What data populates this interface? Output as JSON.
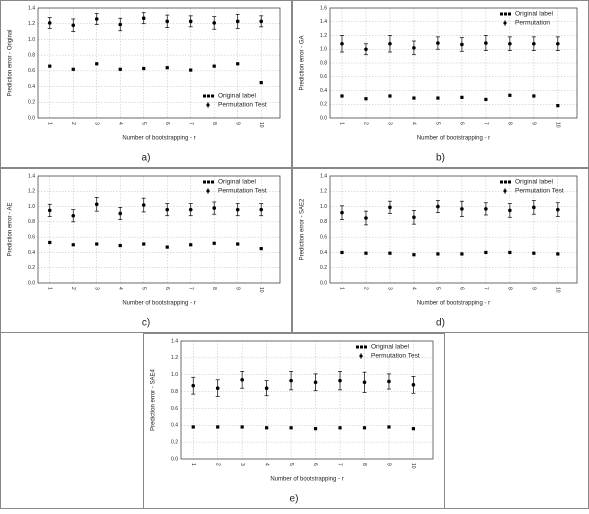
{
  "chart_data": [
    {
      "type": "errorbar",
      "panel_label": "a)",
      "ylabel": "Prediction error - Original",
      "xlabel": "Number of bootstrapping - r",
      "x": [
        1,
        2,
        3,
        4,
        5,
        6,
        7,
        8,
        9,
        10
      ],
      "xlim": [
        0.5,
        10.8
      ],
      "xticks": [
        1,
        2,
        3,
        4,
        5,
        6,
        7,
        8,
        9,
        10
      ],
      "ylim": [
        0,
        1.4
      ],
      "yticks": [
        {
          "value": 0,
          "label": "0.0"
        },
        0.2,
        0.4,
        0.6,
        0.8,
        {
          "value": 1,
          "label": "1.0"
        },
        1.2,
        1.4
      ],
      "grid": true,
      "legend_loc": "lower right",
      "series": [
        {
          "name": "Original label",
          "color": "#000000",
          "values": [
            0.66,
            0.62,
            0.69,
            0.62,
            0.63,
            0.64,
            0.61,
            0.66,
            0.69,
            0.45
          ]
        },
        {
          "name": "Permutation Test",
          "color": "#000000",
          "values": [
            1.21,
            1.18,
            1.26,
            1.19,
            1.27,
            1.23,
            1.23,
            1.21,
            1.23,
            1.23
          ],
          "errors": [
            0.07,
            0.08,
            0.07,
            0.08,
            0.07,
            0.08,
            0.07,
            0.08,
            0.09,
            0.07
          ]
        }
      ]
    },
    {
      "type": "errorbar",
      "panel_label": "b)",
      "ylabel": "Prediction error - GA",
      "xlabel": "Number of bootstrapping - r",
      "x": [
        1,
        2,
        3,
        4,
        5,
        6,
        7,
        8,
        9,
        10
      ],
      "xlim": [
        0.5,
        10.8
      ],
      "xticks": [
        1,
        2,
        3,
        4,
        5,
        6,
        7,
        8,
        9,
        10
      ],
      "ylim": [
        0,
        1.6
      ],
      "yticks": [
        {
          "value": 0,
          "label": "0.0"
        },
        0.2,
        0.4,
        0.6,
        0.8,
        {
          "value": 1,
          "label": "1.0"
        },
        1.2,
        1.4,
        1.6
      ],
      "grid": true,
      "legend_loc": "upper right",
      "series": [
        {
          "name": "Original label",
          "color": "#000000",
          "values": [
            0.32,
            0.28,
            0.32,
            0.29,
            0.29,
            0.3,
            0.27,
            0.33,
            0.32,
            0.18
          ]
        },
        {
          "name": "Permutation",
          "color": "#000000",
          "values": [
            1.08,
            1.0,
            1.08,
            1.02,
            1.09,
            1.07,
            1.09,
            1.08,
            1.08,
            1.08
          ],
          "errors": [
            0.12,
            0.08,
            0.12,
            0.1,
            0.09,
            0.1,
            0.11,
            0.1,
            0.1,
            0.1
          ]
        }
      ]
    },
    {
      "type": "errorbar",
      "panel_label": "c)",
      "ylabel": "Prediction error - AE",
      "xlabel": "Number of bootstrapping - r",
      "x": [
        1,
        2,
        3,
        4,
        5,
        6,
        7,
        8,
        9,
        10
      ],
      "xlim": [
        0.5,
        10.8
      ],
      "xticks": [
        1,
        2,
        3,
        4,
        5,
        6,
        7,
        8,
        9,
        10
      ],
      "ylim": [
        0,
        1.4
      ],
      "yticks": [
        {
          "value": 0,
          "label": "0.0"
        },
        0.2,
        0.4,
        0.6,
        0.8,
        {
          "value": 1,
          "label": "1.0"
        },
        1.2,
        1.4
      ],
      "grid": true,
      "legend_loc": "upper right",
      "series": [
        {
          "name": "Original label",
          "color": "#000000",
          "values": [
            0.53,
            0.5,
            0.51,
            0.49,
            0.51,
            0.47,
            0.5,
            0.52,
            0.51,
            0.45
          ]
        },
        {
          "name": "Permutation Test",
          "color": "#000000",
          "values": [
            0.95,
            0.88,
            1.03,
            0.91,
            1.02,
            0.96,
            0.96,
            0.98,
            0.96,
            0.96
          ],
          "errors": [
            0.08,
            0.08,
            0.09,
            0.08,
            0.09,
            0.08,
            0.08,
            0.08,
            0.08,
            0.08
          ]
        }
      ]
    },
    {
      "type": "errorbar",
      "panel_label": "d)",
      "ylabel": "Prediction error - SAE2",
      "xlabel": "Number of bootstrapping - r",
      "x": [
        1,
        2,
        3,
        4,
        5,
        6,
        7,
        8,
        9,
        10
      ],
      "xlim": [
        0.5,
        10.8
      ],
      "xticks": [
        1,
        2,
        3,
        4,
        5,
        6,
        7,
        8,
        9,
        10
      ],
      "ylim": [
        0,
        1.4
      ],
      "yticks": [
        {
          "value": 0,
          "label": "0.0"
        },
        0.2,
        0.4,
        0.6,
        0.8,
        {
          "value": 1,
          "label": "1.0"
        },
        1.2,
        1.4
      ],
      "grid": true,
      "legend_loc": "upper right",
      "series": [
        {
          "name": "Original label",
          "color": "#000000",
          "values": [
            0.4,
            0.39,
            0.39,
            0.37,
            0.38,
            0.38,
            0.4,
            0.4,
            0.39,
            0.38
          ]
        },
        {
          "name": "Permutation Test",
          "color": "#000000",
          "values": [
            0.92,
            0.85,
            0.99,
            0.86,
            1.0,
            0.97,
            0.97,
            0.95,
            0.99,
            0.96
          ],
          "errors": [
            0.09,
            0.09,
            0.08,
            0.09,
            0.08,
            0.1,
            0.08,
            0.09,
            0.09,
            0.09
          ]
        }
      ]
    },
    {
      "type": "errorbar",
      "panel_label": "e)",
      "ylabel": "Prediction error - SAE4",
      "xlabel": "Number of bootstrapping - r",
      "x": [
        1,
        2,
        3,
        4,
        5,
        6,
        7,
        8,
        9,
        10
      ],
      "xlim": [
        0.5,
        10.8
      ],
      "xticks": [
        1,
        2,
        3,
        4,
        5,
        6,
        7,
        8,
        9,
        10
      ],
      "ylim": [
        0,
        1.4
      ],
      "yticks": [
        {
          "value": 0,
          "label": "0.0"
        },
        0.2,
        0.4,
        0.6,
        0.8,
        {
          "value": 1,
          "label": "1.0"
        },
        1.2,
        1.4
      ],
      "grid": true,
      "legend_loc": "upper right",
      "series": [
        {
          "name": "Original label",
          "color": "#000000",
          "values": [
            0.38,
            0.38,
            0.38,
            0.37,
            0.37,
            0.36,
            0.37,
            0.37,
            0.38,
            0.36
          ]
        },
        {
          "name": "Permutation Test",
          "color": "#000000",
          "values": [
            0.87,
            0.84,
            0.94,
            0.84,
            0.93,
            0.91,
            0.93,
            0.91,
            0.92,
            0.88
          ],
          "errors": [
            0.1,
            0.1,
            0.1,
            0.09,
            0.11,
            0.1,
            0.11,
            0.12,
            0.09,
            0.1
          ]
        }
      ]
    }
  ]
}
